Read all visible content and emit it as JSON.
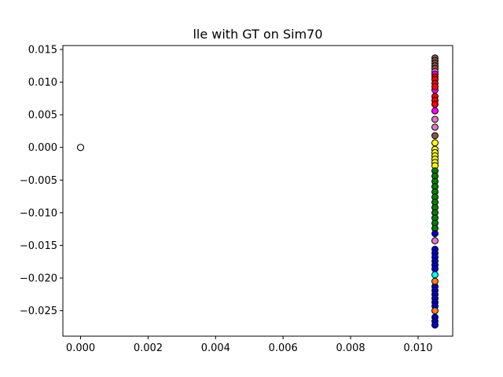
{
  "chart_data": {
    "type": "scatter",
    "title": "lle with GT on Sim70",
    "xlabel": "",
    "ylabel": "",
    "xlim": [
      -0.000525,
      0.011025
    ],
    "ylim": [
      -0.0289,
      0.0156
    ],
    "grid": false,
    "legend": "none",
    "x_ticks": [
      {
        "value": 0.0,
        "label": "0.000"
      },
      {
        "value": 0.002,
        "label": "0.002"
      },
      {
        "value": 0.004,
        "label": "0.004"
      },
      {
        "value": 0.006,
        "label": "0.006"
      },
      {
        "value": 0.008,
        "label": "0.008"
      },
      {
        "value": 0.01,
        "label": "0.010"
      }
    ],
    "y_ticks": [
      {
        "value": 0.015,
        "label": "0.015"
      },
      {
        "value": 0.01,
        "label": "0.010"
      },
      {
        "value": 0.005,
        "label": "0.005"
      },
      {
        "value": 0.0,
        "label": "0.000"
      },
      {
        "value": -0.005,
        "label": "−0.005"
      },
      {
        "value": -0.01,
        "label": "−0.010"
      },
      {
        "value": -0.015,
        "label": "−0.015"
      },
      {
        "value": -0.02,
        "label": "−0.020"
      },
      {
        "value": -0.025,
        "label": "−0.025"
      }
    ],
    "marker_edge_color": "#000000",
    "groups": [
      {
        "color": "#ff7f0e",
        "x": 0.0,
        "y": [
          0.0
        ]
      },
      {
        "color": "#ffffff",
        "x": 0.0,
        "y": [
          0.0
        ]
      },
      {
        "color": "#8c564b",
        "x": 0.0105,
        "y": [
          0.0137,
          0.0133,
          0.0129,
          0.0125,
          0.0121,
          0.0018
        ]
      },
      {
        "color": "#e377c2",
        "x": 0.0105,
        "y": [
          0.0116,
          0.0043,
          0.0031,
          -0.0143
        ]
      },
      {
        "color": "#ff00ff",
        "x": 0.0105,
        "y": [
          0.0112,
          0.0088,
          0.0056
        ]
      },
      {
        "color": "#ff0000",
        "x": 0.0105,
        "y": [
          0.0108,
          0.0104,
          0.0098,
          0.0093,
          0.0078,
          0.0072,
          0.0066
        ]
      },
      {
        "color": "#ffff00",
        "x": 0.0105,
        "y": [
          0.0007,
          -0.0003,
          -0.0008,
          -0.0013,
          -0.0018,
          -0.0023,
          -0.0028
        ]
      },
      {
        "color": "#008000",
        "x": 0.0105,
        "y": [
          -0.0036,
          -0.0044,
          -0.0052,
          -0.006,
          -0.0068,
          -0.0076,
          -0.0084,
          -0.0092,
          -0.01,
          -0.0108,
          -0.0116,
          -0.0124
        ]
      },
      {
        "color": "#0000cd",
        "x": 0.0105,
        "y": [
          -0.0132,
          -0.0156,
          -0.0162,
          -0.0168,
          -0.0174,
          -0.018,
          -0.0186,
          -0.0213,
          -0.0219,
          -0.0225,
          -0.0231,
          -0.0237,
          -0.0243,
          -0.026,
          -0.0266,
          -0.0272
        ]
      },
      {
        "color": "#00ffff",
        "x": 0.0105,
        "y": [
          -0.0195
        ]
      },
      {
        "color": "#ff7f0e",
        "x": 0.0105,
        "y": [
          -0.0205,
          -0.025
        ]
      }
    ]
  }
}
